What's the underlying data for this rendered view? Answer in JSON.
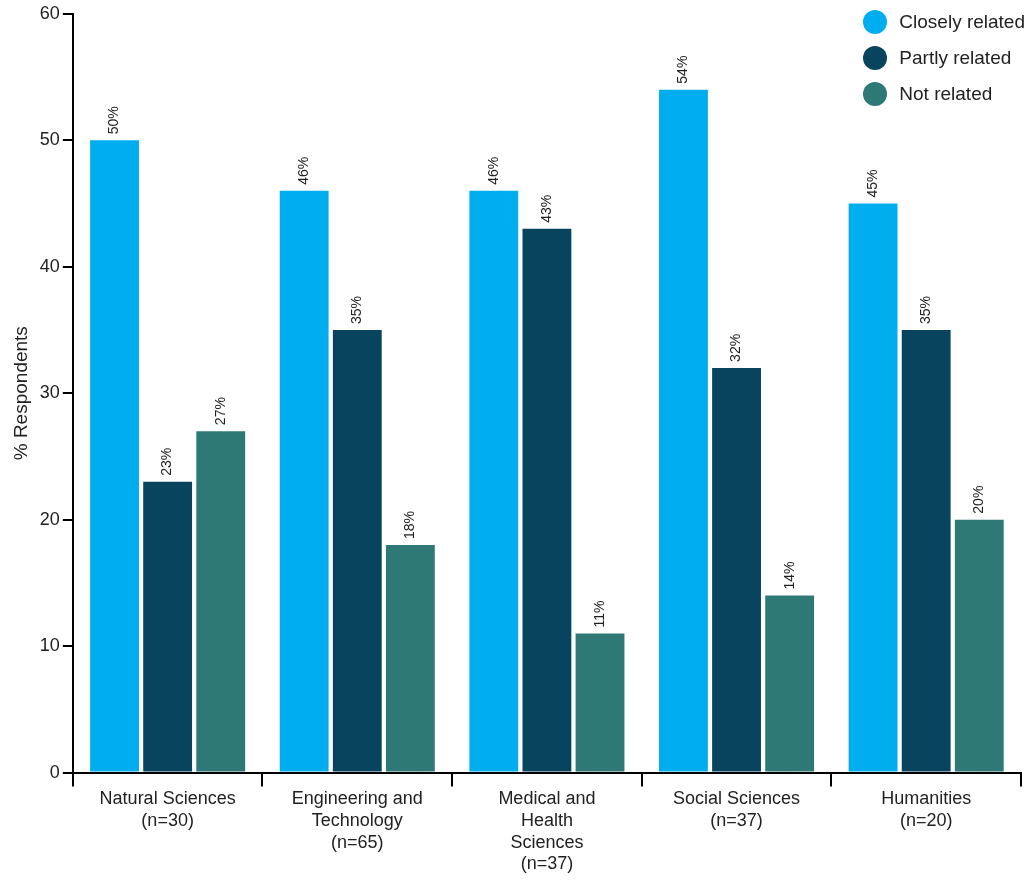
{
  "chart_data": {
    "type": "bar",
    "ylabel": "% Respondents",
    "categories": [
      "Natural Sciences\n(n=30)",
      "Engineering and\nTechnology\n(n=65)",
      "Medical and\nHealth\nSciences\n(n=37)",
      "Social Sciences\n(n=37)",
      "Humanities\n(n=20)"
    ],
    "series": [
      {
        "name": "Closely related",
        "color": "#00aeef",
        "values": [
          50,
          46,
          46,
          54,
          45
        ],
        "value_labels": [
          "50%",
          "46%",
          "46%",
          "54%",
          "45%"
        ]
      },
      {
        "name": "Partly related",
        "color": "#08445e",
        "values": [
          23,
          35,
          43,
          32,
          35
        ],
        "value_labels": [
          "23%",
          "35%",
          "43%",
          "32%",
          "35%"
        ]
      },
      {
        "name": "Not related",
        "color": "#2e7875",
        "values": [
          27,
          18,
          11,
          14,
          20
        ],
        "value_labels": [
          "27%",
          "18%",
          "11%",
          "14%",
          "20%"
        ]
      }
    ],
    "ylim": [
      0,
      60
    ],
    "yticks": [
      0,
      10,
      20,
      30,
      40,
      50,
      60
    ],
    "grid": false,
    "legend": "top right",
    "marker": "circle"
  }
}
